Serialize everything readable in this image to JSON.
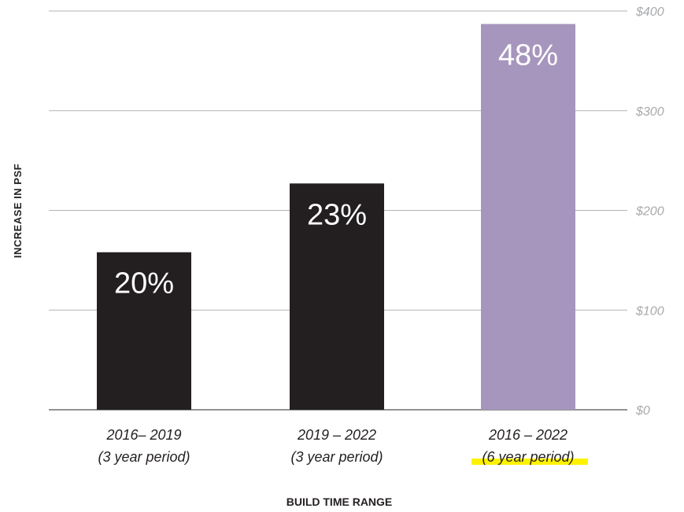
{
  "chart_data": {
    "type": "bar",
    "title": "",
    "xlabel": "BUILD TIME RANGE",
    "ylabel": "INCREASE IN PSF",
    "categories": [
      [
        "2016– 2019",
        "(3 year period)"
      ],
      [
        "2019 – 2022",
        "(3 year period)"
      ],
      [
        "2016 – 2022",
        "(6 year period)"
      ]
    ],
    "values": [
      158,
      227,
      387
    ],
    "data_labels": [
      "20%",
      "23%",
      "48%"
    ],
    "bar_colors": [
      "#231f20",
      "#231f20",
      "#a696bd"
    ],
    "highlight_color": "#fff200",
    "highlighted_label": "(6 year period)",
    "ylim": [
      0,
      400
    ],
    "y_ticks": [
      0,
      100,
      200,
      300,
      400
    ],
    "y_tick_labels": [
      "$0",
      "$100",
      "$200",
      "$300",
      "$400"
    ],
    "y_axis_side": "right",
    "grid": true,
    "legend": "none"
  }
}
